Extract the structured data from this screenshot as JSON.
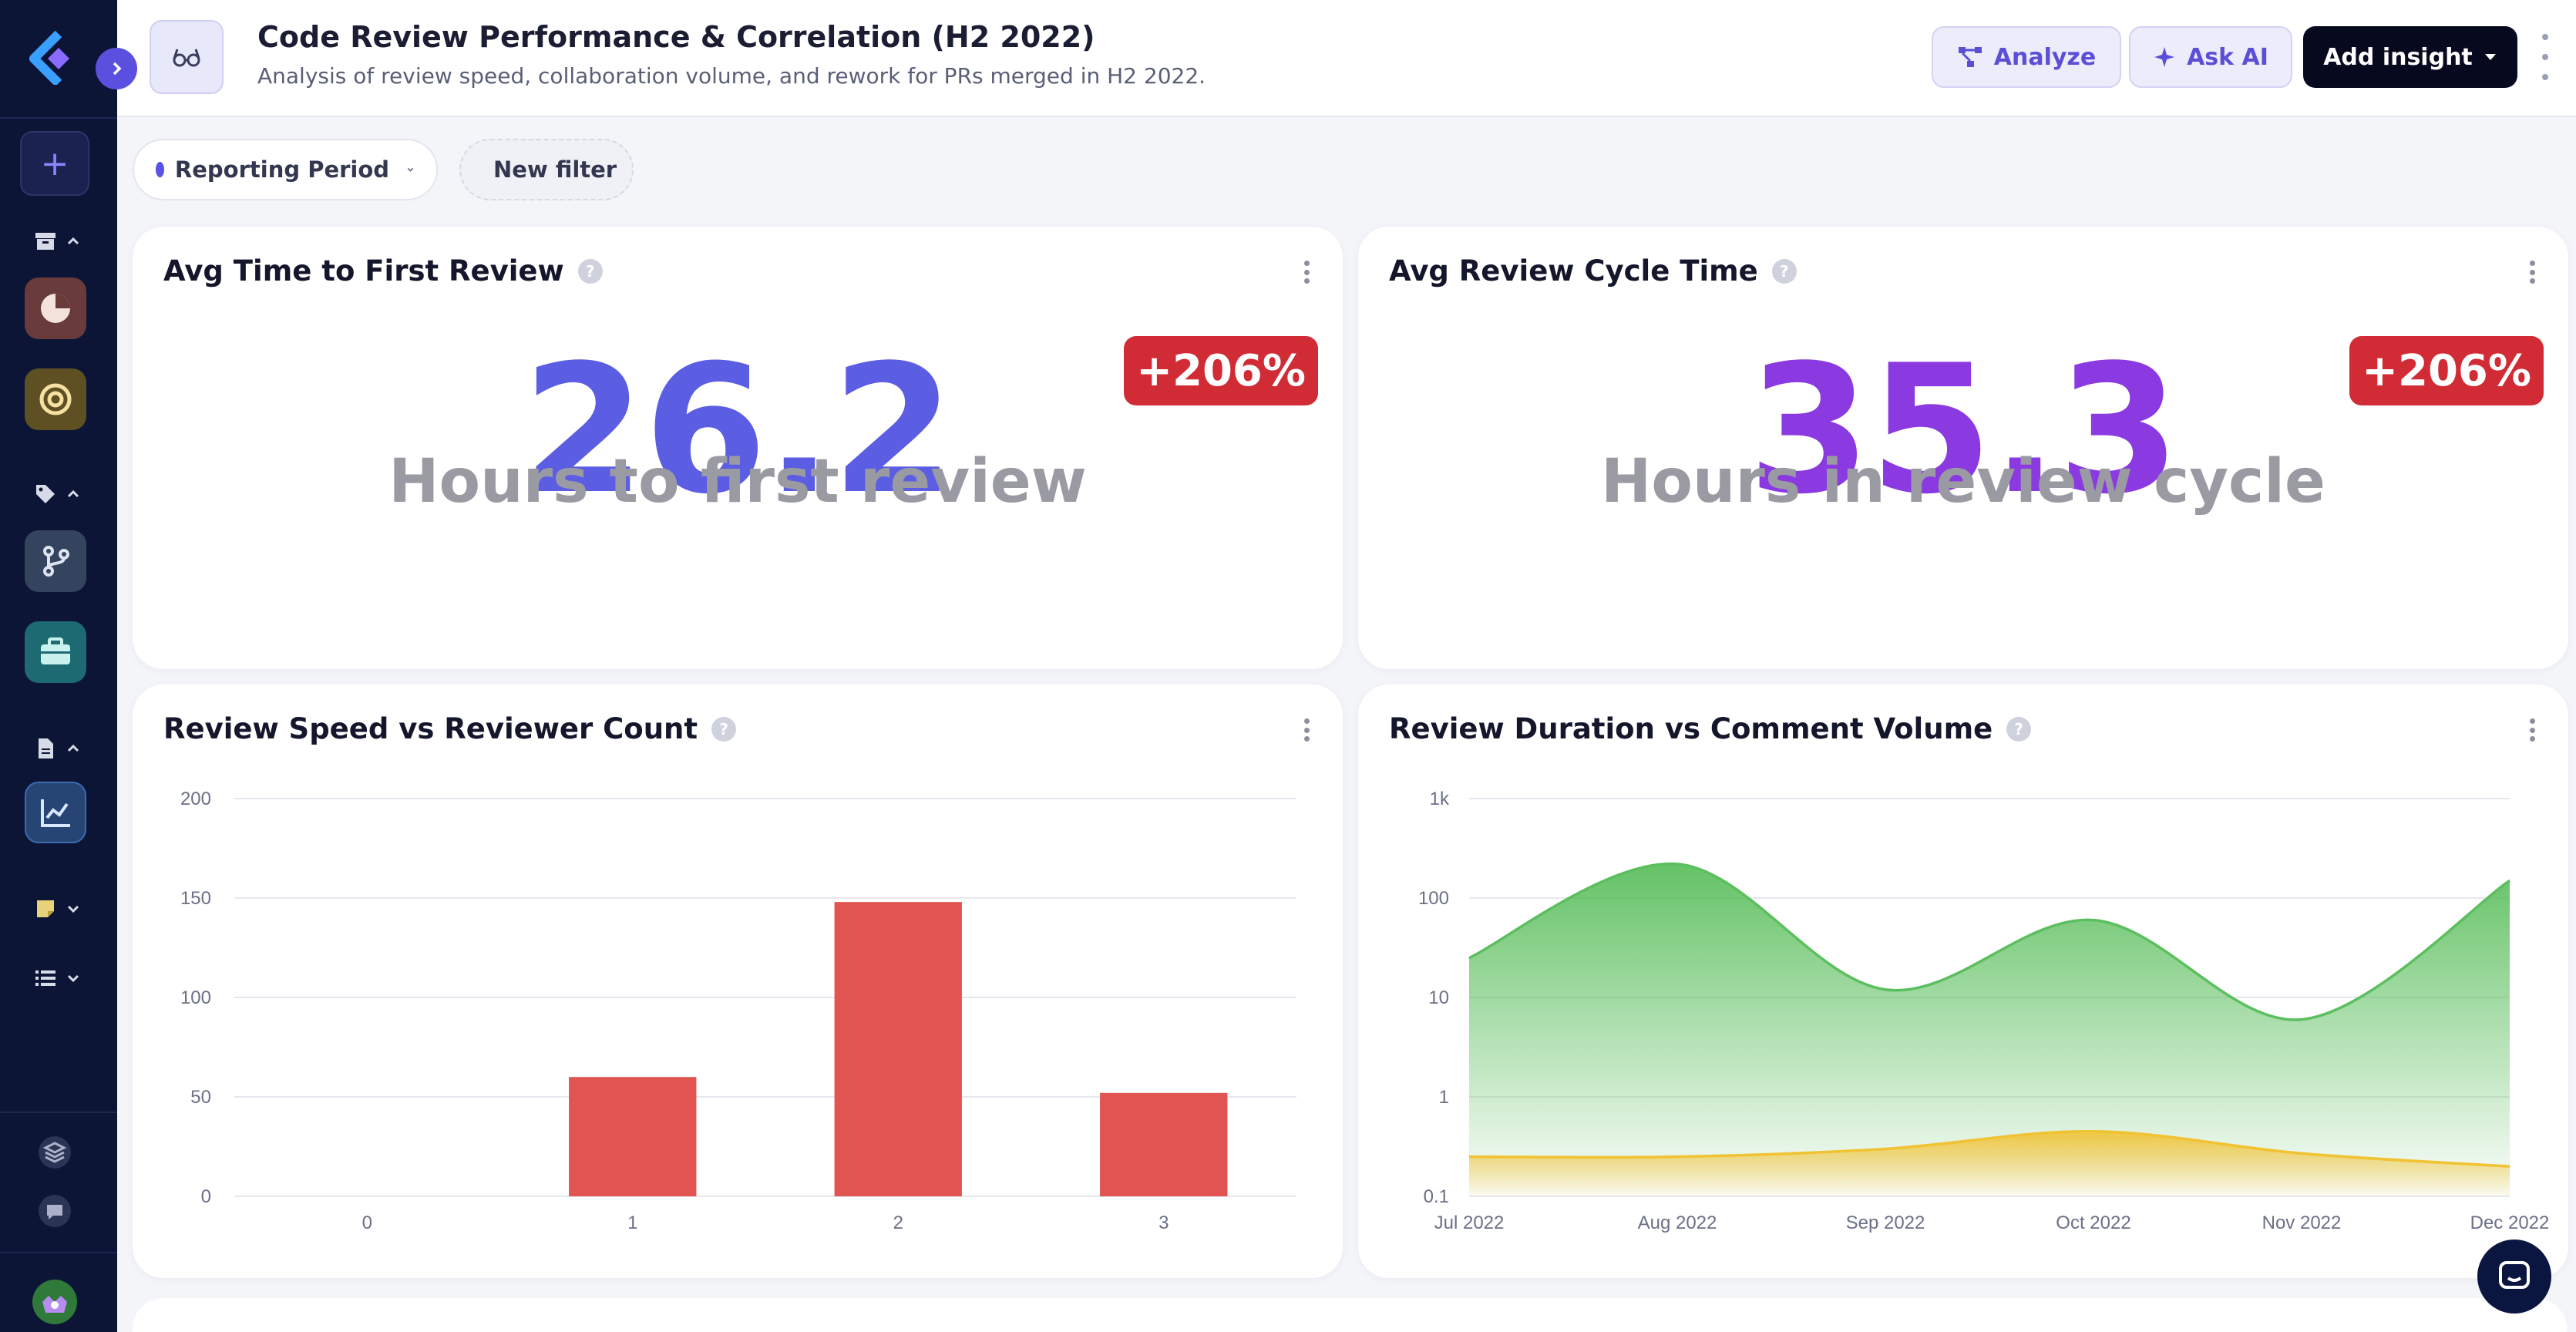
{
  "header": {
    "title": "Code Review Performance & Correlation (H2 2022)",
    "subtitle": "Analysis of review speed, collaboration volume, and rework for PRs merged in H2 2022.",
    "analyze_label": "Analyze",
    "ask_ai_label": "Ask AI",
    "add_insight_label": "Add insight"
  },
  "filters": {
    "period_label": "Reporting Period",
    "new_filter_label": "New filter"
  },
  "kpis": [
    {
      "title": "Avg Time to First Review",
      "value": "26.2",
      "label": "Hours to first review",
      "badge": "+206%",
      "color": "#5b5de3"
    },
    {
      "title": "Avg Review Cycle Time",
      "value": "35.3",
      "label": "Hours in review cycle",
      "badge": "+206%",
      "color": "#8a3ae0"
    }
  ],
  "charts": {
    "bar_title": "Review Speed vs Reviewer Count",
    "area_title": "Review Duration vs Comment Volume"
  },
  "chart_data": [
    {
      "type": "bar",
      "title": "Review Speed vs Reviewer Count",
      "categories": [
        "0",
        "1",
        "2",
        "3"
      ],
      "values": [
        0,
        60,
        148,
        52
      ],
      "ylim": [
        0,
        200
      ],
      "yticks": [
        0,
        50,
        100,
        150,
        200
      ],
      "color": "#e05552",
      "grid": true
    },
    {
      "type": "area",
      "title": "Review Duration vs Comment Volume",
      "x": [
        "Jul 2022",
        "Aug 2022",
        "Sep 2022",
        "Oct 2022",
        "Nov 2022",
        "Dec 2022"
      ],
      "log_scale": true,
      "ylim": [
        0.1,
        1000
      ],
      "ytick_labels": [
        "0.1",
        "1",
        "10",
        "100",
        "1k"
      ],
      "series": [
        {
          "values": [
            25,
            220,
            12,
            60,
            6,
            150
          ],
          "color": "#5cbf5e"
        },
        {
          "values": [
            0.25,
            0.25,
            0.3,
            0.45,
            0.27,
            0.2
          ],
          "color": "#f1c232"
        }
      ],
      "grid": true
    }
  ]
}
